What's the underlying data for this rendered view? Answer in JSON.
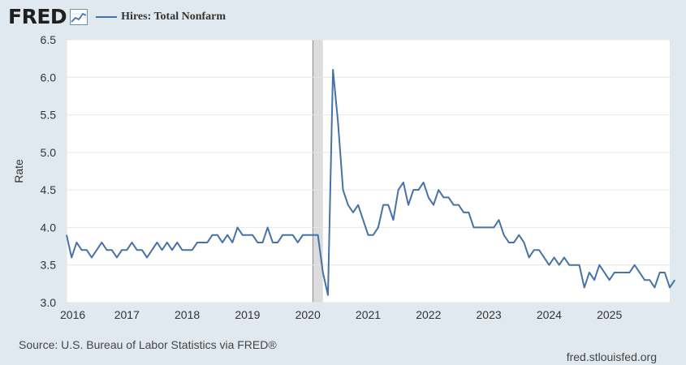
{
  "header": {
    "logo_text": "FRED",
    "logo_icon": "line-graph-icon",
    "series_label": "Hires: Total Nonfarm"
  },
  "footer": {
    "source": "Source: U.S. Bureau of Labor Statistics via FRED®",
    "credit": "fred.stlouisfed.org"
  },
  "colors": {
    "page_background": "#e1e9f0",
    "plot_background": "#ffffff",
    "line": "#4572a7",
    "recession_shading": "#dcdcdc"
  },
  "chart_data": {
    "type": "line",
    "title": "Hires: Total Nonfarm",
    "xlabel": "",
    "ylabel": "Rate",
    "ylim": [
      3.0,
      6.5
    ],
    "yticks": [
      3.0,
      3.5,
      4.0,
      4.5,
      5.0,
      5.5,
      6.0,
      6.5
    ],
    "xticks": [
      "2016",
      "2017",
      "2018",
      "2019",
      "2020",
      "2021",
      "2022",
      "2023",
      "2024",
      "2025"
    ],
    "grid": "horizontal",
    "recession_shading": [
      "2020-02",
      "2020-04"
    ],
    "series": [
      {
        "name": "Hires: Total Nonfarm",
        "start": "2016-01",
        "frequency": "monthly",
        "values": [
          3.9,
          3.6,
          3.8,
          3.7,
          3.7,
          3.6,
          3.7,
          3.8,
          3.7,
          3.7,
          3.6,
          3.7,
          3.7,
          3.8,
          3.7,
          3.7,
          3.6,
          3.7,
          3.8,
          3.7,
          3.8,
          3.7,
          3.8,
          3.7,
          3.7,
          3.7,
          3.8,
          3.8,
          3.8,
          3.9,
          3.9,
          3.8,
          3.9,
          3.8,
          4.0,
          3.9,
          3.9,
          3.9,
          3.8,
          3.8,
          4.0,
          3.8,
          3.8,
          3.9,
          3.9,
          3.9,
          3.8,
          3.9,
          3.9,
          3.9,
          3.9,
          3.4,
          3.1,
          6.1,
          5.4,
          4.5,
          4.3,
          4.2,
          4.3,
          4.1,
          3.9,
          3.9,
          4.0,
          4.3,
          4.3,
          4.1,
          4.5,
          4.6,
          4.3,
          4.5,
          4.5,
          4.6,
          4.4,
          4.3,
          4.5,
          4.4,
          4.4,
          4.3,
          4.3,
          4.2,
          4.2,
          4.0,
          4.0,
          4.0,
          4.0,
          4.0,
          4.1,
          3.9,
          3.8,
          3.8,
          3.9,
          3.8,
          3.6,
          3.7,
          3.7,
          3.6,
          3.5,
          3.6,
          3.5,
          3.6,
          3.5,
          3.5,
          3.5,
          3.2,
          3.4,
          3.3,
          3.5,
          3.4,
          3.3,
          3.4,
          3.4,
          3.4,
          3.4,
          3.5,
          3.4,
          3.3,
          3.3,
          3.2,
          3.4,
          3.4,
          3.2,
          3.3
        ]
      }
    ]
  }
}
